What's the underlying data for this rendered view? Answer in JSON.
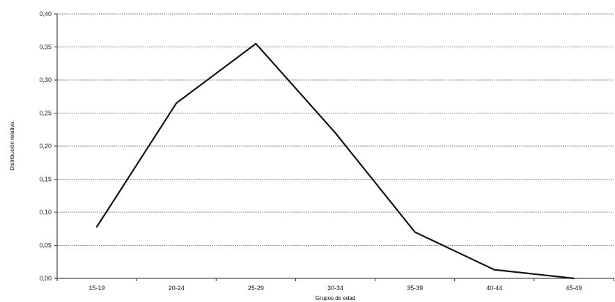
{
  "chart_data": {
    "type": "line",
    "title": "",
    "xlabel": "Grupos de edad",
    "ylabel": "Distribución relativa",
    "categories": [
      "15-19",
      "20-24",
      "25-29",
      "30-34",
      "35-39",
      "40-44",
      "45-49"
    ],
    "series": [
      {
        "values": [
          0.078,
          0.265,
          0.355,
          0.22,
          0.07,
          0.013,
          0.0
        ]
      }
    ],
    "ylim": [
      0,
      0.4
    ],
    "yticks": [
      "0,00",
      "0,05",
      "0,10",
      "0,15",
      "0,20",
      "0,25",
      "0,30",
      "0,35",
      "0,40"
    ],
    "grid": true,
    "legend": "none",
    "colors": {
      "line": "#111111",
      "grid": "#8a8a8a",
      "axis": "#222222"
    }
  }
}
